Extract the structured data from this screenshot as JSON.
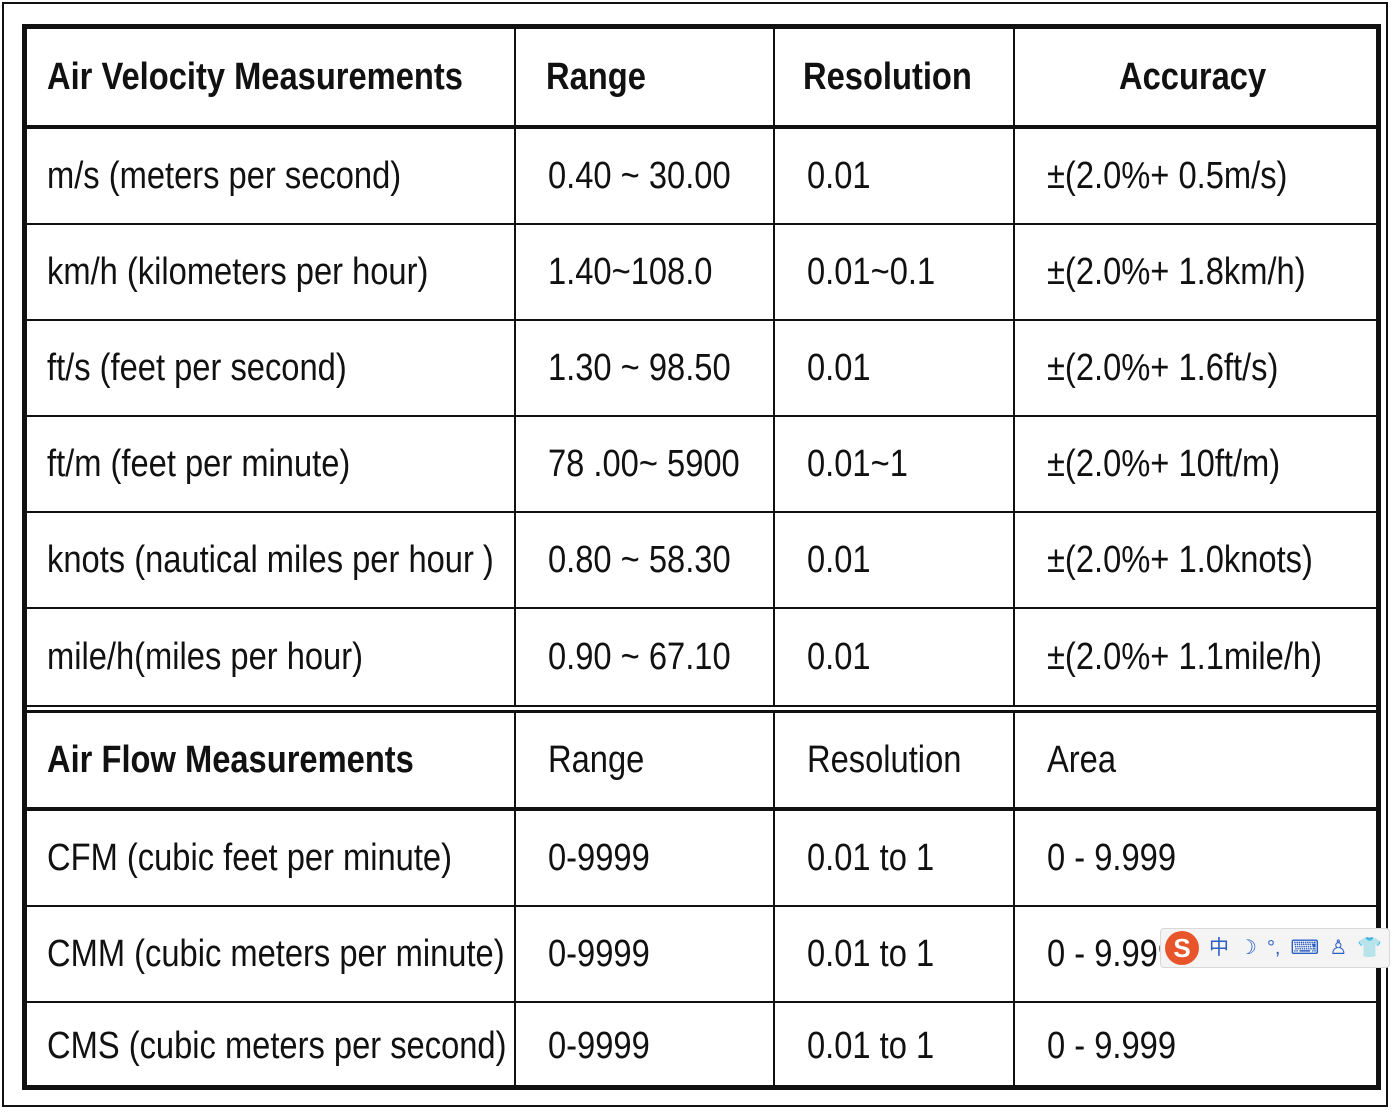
{
  "velocity_header": {
    "col1": "Air Velocity Measurements",
    "col2": "Range",
    "col3": "Resolution",
    "col4": "Accuracy"
  },
  "velocity_rows": [
    [
      "m/s (meters per second)",
      "0.40 ~ 30.00",
      "0.01",
      "±(2.0%+ 0.5m/s)"
    ],
    [
      "km/h (kilometers per hour)",
      "1.40~108.0",
      "0.01~0.1",
      "±(2.0%+ 1.8km/h)"
    ],
    [
      "ft/s (feet per second)",
      "1.30 ~ 98.50",
      "0.01",
      "±(2.0%+ 1.6ft/s)"
    ],
    [
      "ft/m (feet per minute)",
      "78 .00~ 5900",
      "0.01~1",
      "±(2.0%+ 10ft/m)"
    ],
    [
      "knots (nautical miles per hour )",
      "0.80 ~ 58.30",
      "0.01",
      "±(2.0%+ 1.0knots)"
    ],
    [
      "mile/h(miles per hour)",
      "0.90 ~ 67.10",
      "0.01",
      "±(2.0%+ 1.1mile/h)"
    ]
  ],
  "flow_header": {
    "col1": "Air Flow Measurements",
    "col2": "Range",
    "col3": "Resolution",
    "col4": "Area"
  },
  "flow_rows": [
    [
      "CFM (cubic feet per minute)",
      "0-9999",
      "0.01 to 1",
      "0 - 9.999"
    ],
    [
      "CMM (cubic meters per minute)",
      "0-9999",
      "0.01 to 1",
      "0 - 9.999"
    ],
    [
      "CMS (cubic meters per second)",
      "0-9999",
      "0.01 to 1",
      "0 - 9.999"
    ]
  ],
  "ime_toolbar": {
    "logo": "S",
    "items": [
      "中",
      "☽",
      "°,",
      "⌨",
      "♙",
      "👕"
    ]
  }
}
